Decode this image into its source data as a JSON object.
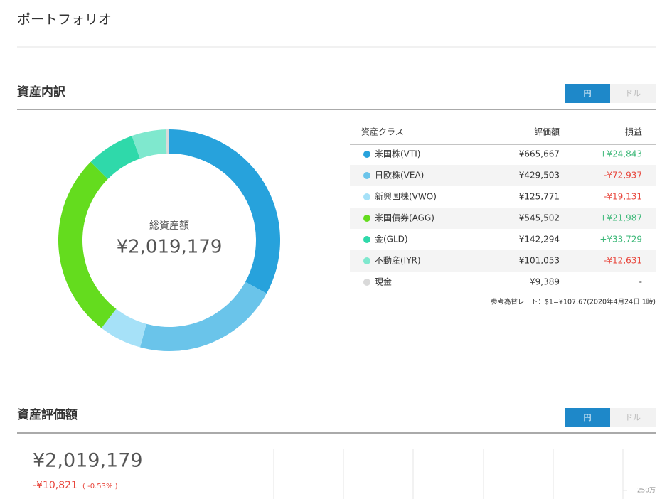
{
  "header": {
    "title": "ポートフォリオ"
  },
  "allocation": {
    "title": "資産内訳",
    "toggle": [
      "円",
      "ドル"
    ],
    "columns": [
      "資産クラス",
      "評価額",
      "損益"
    ],
    "chart_data": {
      "type": "donut",
      "center_label": "総資産額",
      "center_value": "¥2,019,179",
      "categories": [
        "米国株(VTI)",
        "日欧株(VEA)",
        "新興国株(VWO)",
        "米国債券(AGG)",
        "金(GLD)",
        "不動産(IYR)",
        "現金"
      ],
      "colors": [
        "#27a2dc",
        "#6ac4ea",
        "#a6e1f8",
        "#64dc1e",
        "#2fd9aa",
        "#7fe8ce",
        "#d9d9d9"
      ],
      "values": [
        665667,
        429503,
        125771,
        545502,
        142294,
        101053,
        9389
      ],
      "value_labels": [
        "¥665,667",
        "¥429,503",
        "¥125,771",
        "¥545,502",
        "¥142,294",
        "¥101,053",
        "¥9,389"
      ]
    },
    "gains": [
      "+¥24,843",
      "-¥72,937",
      "-¥19,131",
      "+¥21,987",
      "+¥33,729",
      "-¥12,631",
      "-"
    ],
    "rate_note": "参考為替レート：$1=¥107.67(2020年4月24日 1時)"
  },
  "valuation": {
    "title": "資産評価額",
    "toggle": [
      "円",
      "ドル"
    ],
    "total": "¥2,019,179",
    "change": "-¥10,821",
    "change_pct": "( -0.53% )",
    "axis_label": "250万"
  }
}
